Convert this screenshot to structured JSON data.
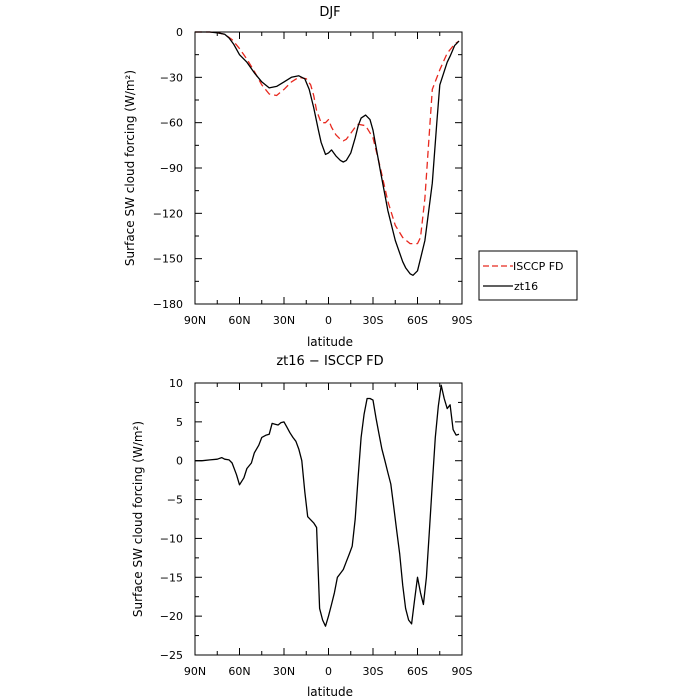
{
  "chart_data": [
    {
      "type": "line",
      "title": "DJF",
      "xlabel": "latitude",
      "ylabel": "Surface SW cloud forcing (W/m²)",
      "xlim": [
        90,
        -90
      ],
      "ylim": [
        -180,
        0
      ],
      "x_tick_labels": [
        "90N",
        "60N",
        "30N",
        "0",
        "30S",
        "60S",
        "90S"
      ],
      "y_ticks": [
        0,
        -30,
        -60,
        -90,
        -120,
        -150,
        -180
      ],
      "legend_position": "outside-right",
      "series": [
        {
          "name": "ISCCP FD",
          "color": "#e8291f",
          "dash": "dashed",
          "x": [
            90,
            85,
            80,
            75,
            70,
            65,
            60,
            55,
            50,
            45,
            40,
            35,
            30,
            25,
            20,
            15,
            12,
            10,
            8,
            5,
            2,
            0,
            -2,
            -5,
            -8,
            -10,
            -12,
            -15,
            -18,
            -20,
            -25,
            -30,
            -35,
            -40,
            -45,
            -50,
            -55,
            -60,
            -62,
            -65,
            -70,
            -75,
            -80,
            -85,
            -88
          ],
          "y": [
            0,
            0,
            0,
            -0.5,
            -1.5,
            -5,
            -11,
            -18,
            -26,
            -35,
            -41,
            -42,
            -38,
            -33,
            -30,
            -31,
            -35,
            -42,
            -52,
            -60,
            -60,
            -58,
            -63,
            -68,
            -71,
            -72,
            -71,
            -67,
            -63,
            -61,
            -62,
            -70,
            -90,
            -112,
            -128,
            -136,
            -140,
            -140,
            -136,
            -110,
            -38,
            -25,
            -14,
            -8,
            -6
          ]
        },
        {
          "name": "zt16",
          "color": "#000000",
          "dash": "solid",
          "x": [
            90,
            85,
            80,
            75,
            70,
            67,
            64,
            60,
            55,
            50,
            45,
            40,
            35,
            30,
            25,
            20,
            16,
            13,
            10,
            7,
            5,
            2,
            0,
            -2,
            -5,
            -8,
            -10,
            -12,
            -15,
            -18,
            -20,
            -22,
            -25,
            -28,
            -30,
            -35,
            -40,
            -45,
            -50,
            -52,
            -55,
            -57,
            -60,
            -62,
            -65,
            -70,
            -73,
            -75,
            -80,
            -82,
            -85,
            -88
          ],
          "y": [
            0,
            0,
            0,
            -0.5,
            -1.5,
            -4,
            -8,
            -15,
            -20,
            -27,
            -33,
            -37,
            -36,
            -33,
            -30,
            -29,
            -31,
            -38,
            -50,
            -64,
            -73,
            -81,
            -80,
            -78,
            -82,
            -85,
            -86,
            -85,
            -80,
            -70,
            -62,
            -57,
            -55,
            -58,
            -65,
            -92,
            -118,
            -138,
            -152,
            -156,
            -160,
            -161,
            -158,
            -150,
            -138,
            -100,
            -60,
            -35,
            -20,
            -16,
            -9,
            -6
          ]
        }
      ]
    },
    {
      "type": "line",
      "title": "zt16 − ISCCP FD",
      "xlabel": "latitude",
      "ylabel": "Surface SW cloud forcing (W/m²)",
      "xlim": [
        90,
        -90
      ],
      "ylim": [
        -25,
        10
      ],
      "x_tick_labels": [
        "90N",
        "60N",
        "30N",
        "0",
        "30S",
        "60S",
        "90S"
      ],
      "y_ticks": [
        10,
        5,
        0,
        -5,
        -10,
        -15,
        -20,
        -25
      ],
      "series": [
        {
          "color": "#000000",
          "dash": "solid",
          "x": [
            90,
            85,
            80,
            75,
            72,
            70,
            67,
            65,
            62,
            60,
            57,
            55,
            52,
            50,
            47,
            45,
            42,
            40,
            38,
            36,
            34,
            32,
            30,
            28,
            26,
            24,
            22,
            20,
            18,
            16,
            14,
            12,
            10,
            8,
            6,
            4,
            2,
            0,
            -2,
            -4,
            -6,
            -8,
            -10,
            -12,
            -14,
            -16,
            -18,
            -20,
            -22,
            -24,
            -26,
            -28,
            -30,
            -32,
            -34,
            -36,
            -38,
            -40,
            -42,
            -44,
            -46,
            -48,
            -50,
            -52,
            -54,
            -56,
            -58,
            -60,
            -62,
            -64,
            -66,
            -68,
            -70,
            -72,
            -74,
            -76,
            -78,
            -80,
            -82,
            -84,
            -86,
            -88
          ],
          "y": [
            0,
            0,
            0.1,
            0.2,
            0.4,
            0.2,
            0.1,
            -0.3,
            -1.8,
            -3.1,
            -2.2,
            -1.0,
            -0.3,
            1.0,
            2.0,
            3.0,
            3.3,
            3.4,
            4.8,
            4.7,
            4.6,
            4.9,
            5.0,
            4.3,
            3.6,
            3.0,
            2.5,
            1.5,
            0,
            -4.0,
            -7.2,
            -7.6,
            -8.0,
            -8.6,
            -19.0,
            -20.5,
            -21.3,
            -20.0,
            -18.5,
            -17.0,
            -15.0,
            -14.5,
            -14.0,
            -13.0,
            -12.0,
            -11.0,
            -7.5,
            -2.0,
            3.0,
            6.0,
            8.0,
            8.0,
            7.8,
            5.5,
            3.5,
            1.5,
            0,
            -1.5,
            -3.0,
            -6.0,
            -9.0,
            -12.0,
            -16.0,
            -19.0,
            -20.5,
            -21.0,
            -18.0,
            -15.0,
            -17.0,
            -18.5,
            -15.0,
            -9.0,
            -3.0,
            3.0,
            7.0,
            9.7,
            8.0,
            6.7,
            7.2,
            4.0,
            3.3,
            3.4
          ]
        }
      ]
    }
  ]
}
